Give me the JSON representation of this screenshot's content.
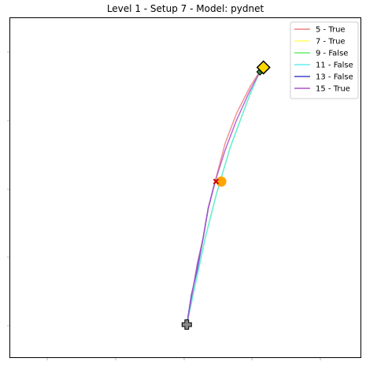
{
  "chart_data": {
    "type": "line",
    "title": "Level 1 - Setup 7 - Model: pydnet",
    "xlabel": "",
    "ylabel": "",
    "xlim": [
      0,
      100
    ],
    "ylim": [
      0,
      100
    ],
    "grid": false,
    "legend_position": "top-right",
    "series": [
      {
        "name": "5 - True",
        "color": "#f08080",
        "x": [
          50.4,
          51.7,
          53.4,
          55.0,
          56.5,
          58.5,
          61.3,
          64.6,
          68.6,
          71.4
        ],
        "y": [
          9.8,
          17.5,
          27.6,
          35.0,
          44.0,
          52.0,
          63.0,
          72.0,
          80.0,
          84.5
        ]
      },
      {
        "name": "7 - True",
        "color": "#ffff66",
        "x": [
          50.4,
          52.5,
          55.6,
          58.8,
          62.8,
          68.2,
          71.4
        ],
        "y": [
          9.8,
          20.0,
          35.0,
          48.0,
          62.0,
          77.0,
          84.5
        ]
      },
      {
        "name": "9 - False",
        "color": "#66ee66",
        "x": [
          50.4,
          52.5,
          55.6,
          58.8,
          62.8,
          68.2,
          71.1
        ],
        "y": [
          9.8,
          20.0,
          35.0,
          48.0,
          62.0,
          77.0,
          84.0
        ]
      },
      {
        "name": "11 - False",
        "color": "#66eeee",
        "x": [
          50.4,
          52.5,
          55.6,
          58.8,
          62.8,
          68.2,
          71.1
        ],
        "y": [
          9.8,
          20.0,
          35.0,
          48.0,
          62.0,
          77.0,
          84.0
        ]
      },
      {
        "name": "13 - False",
        "color": "#4444cc",
        "x": [
          50.4,
          51.7,
          53.4,
          55.0,
          56.5,
          58.5
        ],
        "y": [
          9.8,
          18.5,
          26.0,
          35.0,
          44.0,
          52.0
        ]
      },
      {
        "name": "15 - True",
        "color": "#aa55cc",
        "x": [
          50.4,
          51.7,
          53.4,
          55.0,
          56.5,
          58.5,
          61.3,
          64.4,
          67.9,
          71.4
        ],
        "y": [
          9.8,
          17.5,
          27.6,
          35.0,
          44.0,
          52.0,
          61.0,
          69.5,
          77.5,
          84.5
        ]
      }
    ],
    "markers": [
      {
        "name": "start-cross",
        "shape": "plus",
        "color": "#888888",
        "x": 50.4,
        "y": 9.8
      },
      {
        "name": "midpoint-orange",
        "shape": "circle",
        "color": "#ffa500",
        "x": 60.2,
        "y": 51.8
      },
      {
        "name": "midpoint-red",
        "shape": "x",
        "color": "#cc0000",
        "x": 58.7,
        "y": 51.8
      },
      {
        "name": "end-green",
        "shape": "diamond-small",
        "color": "#2e8b2e",
        "x": 71.2,
        "y": 84.0
      },
      {
        "name": "goal-gold",
        "shape": "diamond",
        "color": "#ffd700",
        "x": 72.2,
        "y": 85.3
      }
    ]
  }
}
